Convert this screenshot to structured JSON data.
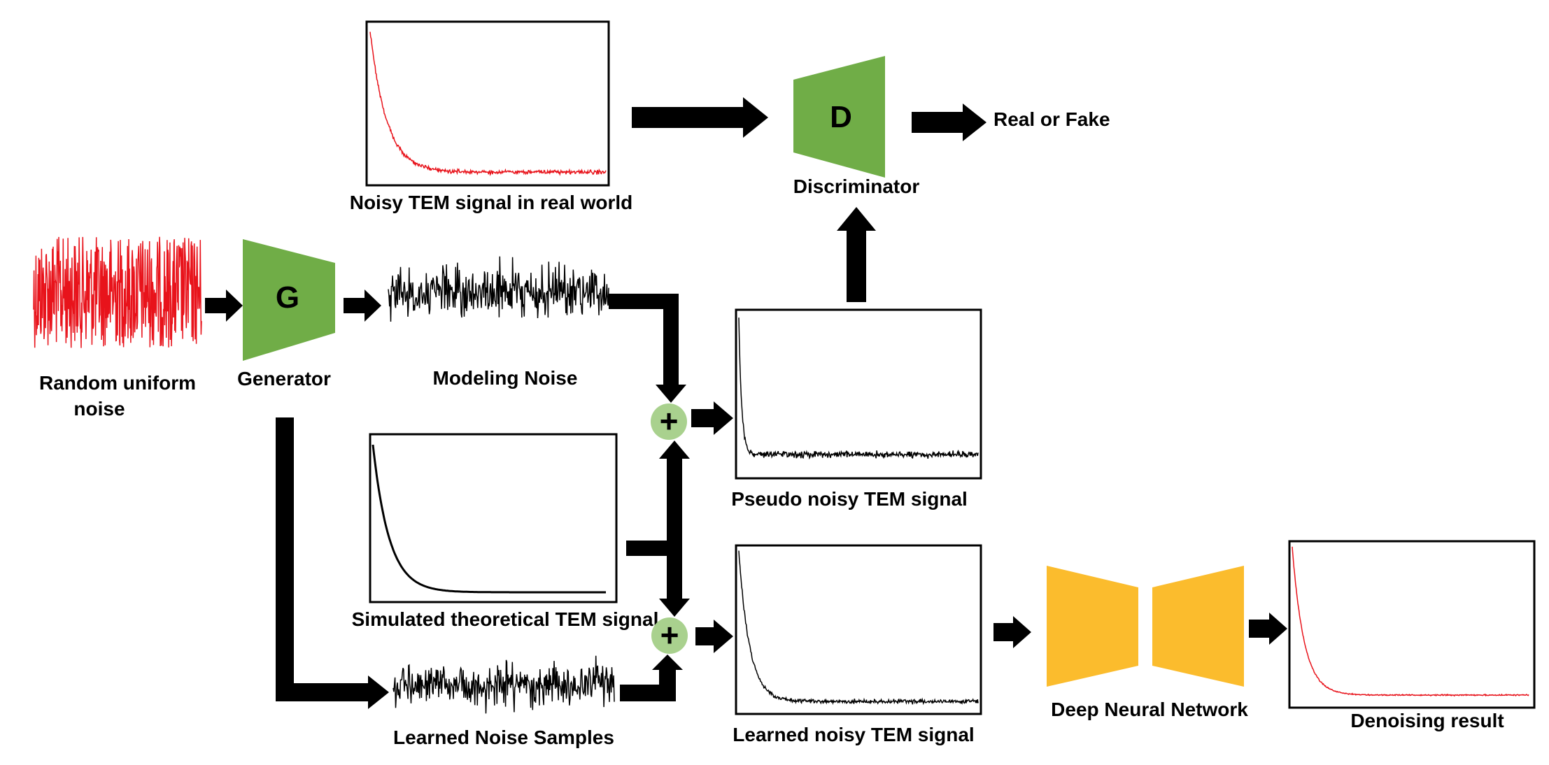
{
  "colors": {
    "generator_green": "#70ad47",
    "dnn_yellow": "#fbbc2d",
    "adder_green": "#a9d18e",
    "signal_red": "#e8131b",
    "signal_black": "#000000",
    "arrow": "#000000"
  },
  "labels": {
    "random_noise_line1": "Random uniform",
    "random_noise_line2": "noise",
    "generator": "Generator",
    "generator_letter": "G",
    "modeling_noise": "Modeling Noise",
    "noisy_real": "Noisy TEM signal in real world",
    "discriminator": "Discriminator",
    "discriminator_letter": "D",
    "real_or_fake": "Real or Fake",
    "pseudo_noisy": "Pseudo noisy TEM signal",
    "simulated": "Simulated theoretical TEM signal",
    "learned_noise": "Learned Noise Samples",
    "learned_noisy": "Learned noisy TEM signal",
    "dnn": "Deep Neural Network",
    "denoising": "Denoising result",
    "plus": "+"
  }
}
